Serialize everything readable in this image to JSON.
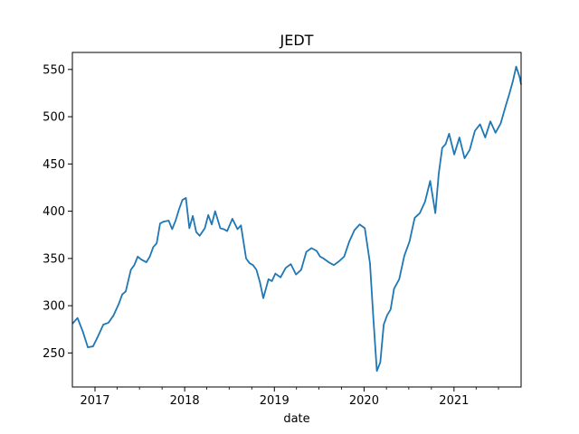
{
  "chart_data": {
    "type": "line",
    "title": "JEDT",
    "xlabel": "date",
    "ylabel": "",
    "x_is_date": true,
    "xlim": [
      "2016-10-01",
      "2021-10-01"
    ],
    "ylim": [
      214,
      568
    ],
    "xticks": [
      {
        "value": "2017-01-01",
        "label": "2017"
      },
      {
        "value": "2018-01-01",
        "label": "2018"
      },
      {
        "value": "2019-01-01",
        "label": "2019"
      },
      {
        "value": "2020-01-01",
        "label": "2020"
      },
      {
        "value": "2021-01-01",
        "label": "2021"
      }
    ],
    "minor_xticks": [
      "2017-04-01",
      "2017-07-01",
      "2017-10-01",
      "2018-04-01",
      "2018-07-01",
      "2018-10-01",
      "2019-04-01",
      "2019-07-01",
      "2019-10-01",
      "2020-04-01",
      "2020-07-01",
      "2020-10-01",
      "2021-04-01",
      "2021-07-01"
    ],
    "yticks": [
      250,
      300,
      350,
      400,
      450,
      500,
      550
    ],
    "grid": false,
    "legend": "none",
    "series": [
      {
        "color": "#1f77b4",
        "x": [
          "2016-10-01",
          "2016-10-22",
          "2016-11-12",
          "2016-12-03",
          "2016-12-24",
          "2017-01-14",
          "2017-02-04",
          "2017-02-25",
          "2017-03-18",
          "2017-04-08",
          "2017-04-22",
          "2017-05-06",
          "2017-05-27",
          "2017-06-10",
          "2017-06-24",
          "2017-07-08",
          "2017-07-29",
          "2017-08-12",
          "2017-08-26",
          "2017-09-09",
          "2017-09-23",
          "2017-10-07",
          "2017-10-28",
          "2017-11-11",
          "2017-11-25",
          "2017-12-09",
          "2017-12-23",
          "2018-01-06",
          "2018-01-13",
          "2018-01-20",
          "2018-02-03",
          "2018-02-17",
          "2018-03-03",
          "2018-03-24",
          "2018-04-07",
          "2018-04-21",
          "2018-05-05",
          "2018-05-26",
          "2018-06-09",
          "2018-06-23",
          "2018-07-14",
          "2018-08-04",
          "2018-08-18",
          "2018-09-08",
          "2018-09-22",
          "2018-10-06",
          "2018-10-20",
          "2018-11-03",
          "2018-11-17",
          "2018-12-08",
          "2018-12-22",
          "2019-01-05",
          "2019-01-26",
          "2019-02-16",
          "2019-03-09",
          "2019-03-30",
          "2019-04-20",
          "2019-05-11",
          "2019-06-01",
          "2019-06-22",
          "2019-07-06",
          "2019-07-20",
          "2019-08-10",
          "2019-08-31",
          "2019-09-21",
          "2019-10-12",
          "2019-11-02",
          "2019-11-23",
          "2019-12-14",
          "2020-01-04",
          "2020-01-25",
          "2020-02-08",
          "2020-02-22",
          "2020-03-07",
          "2020-03-21",
          "2020-04-04",
          "2020-04-18",
          "2020-05-02",
          "2020-05-23",
          "2020-06-13",
          "2020-07-04",
          "2020-07-25",
          "2020-08-15",
          "2020-09-05",
          "2020-09-26",
          "2020-10-17",
          "2020-10-31",
          "2020-11-14",
          "2020-11-28",
          "2020-12-12",
          "2021-01-02",
          "2021-01-23",
          "2021-02-13",
          "2021-03-06",
          "2021-03-27",
          "2021-04-17",
          "2021-05-08",
          "2021-05-29",
          "2021-06-19",
          "2021-07-10",
          "2021-07-31",
          "2021-08-14",
          "2021-08-28",
          "2021-09-11",
          "2021-09-25",
          "2021-10-01"
        ],
        "y": [
          281,
          287,
          273,
          256,
          257,
          268,
          280,
          282,
          290,
          302,
          312,
          315,
          338,
          343,
          352,
          349,
          346,
          352,
          362,
          366,
          387,
          389,
          390,
          381,
          390,
          402,
          412,
          414,
          398,
          382,
          395,
          378,
          374,
          382,
          396,
          386,
          400,
          382,
          381,
          379,
          392,
          381,
          385,
          350,
          345,
          343,
          338,
          325,
          308,
          328,
          326,
          334,
          330,
          340,
          344,
          333,
          338,
          357,
          361,
          358,
          352,
          350,
          346,
          343,
          347,
          352,
          368,
          380,
          386,
          382,
          345,
          286,
          231,
          240,
          280,
          290,
          296,
          318,
          328,
          353,
          368,
          393,
          398,
          410,
          432,
          398,
          440,
          467,
          471,
          482,
          460,
          478,
          456,
          465,
          485,
          492,
          478,
          495,
          483,
          493,
          512,
          524,
          537,
          553,
          542,
          534
        ]
      }
    ]
  }
}
